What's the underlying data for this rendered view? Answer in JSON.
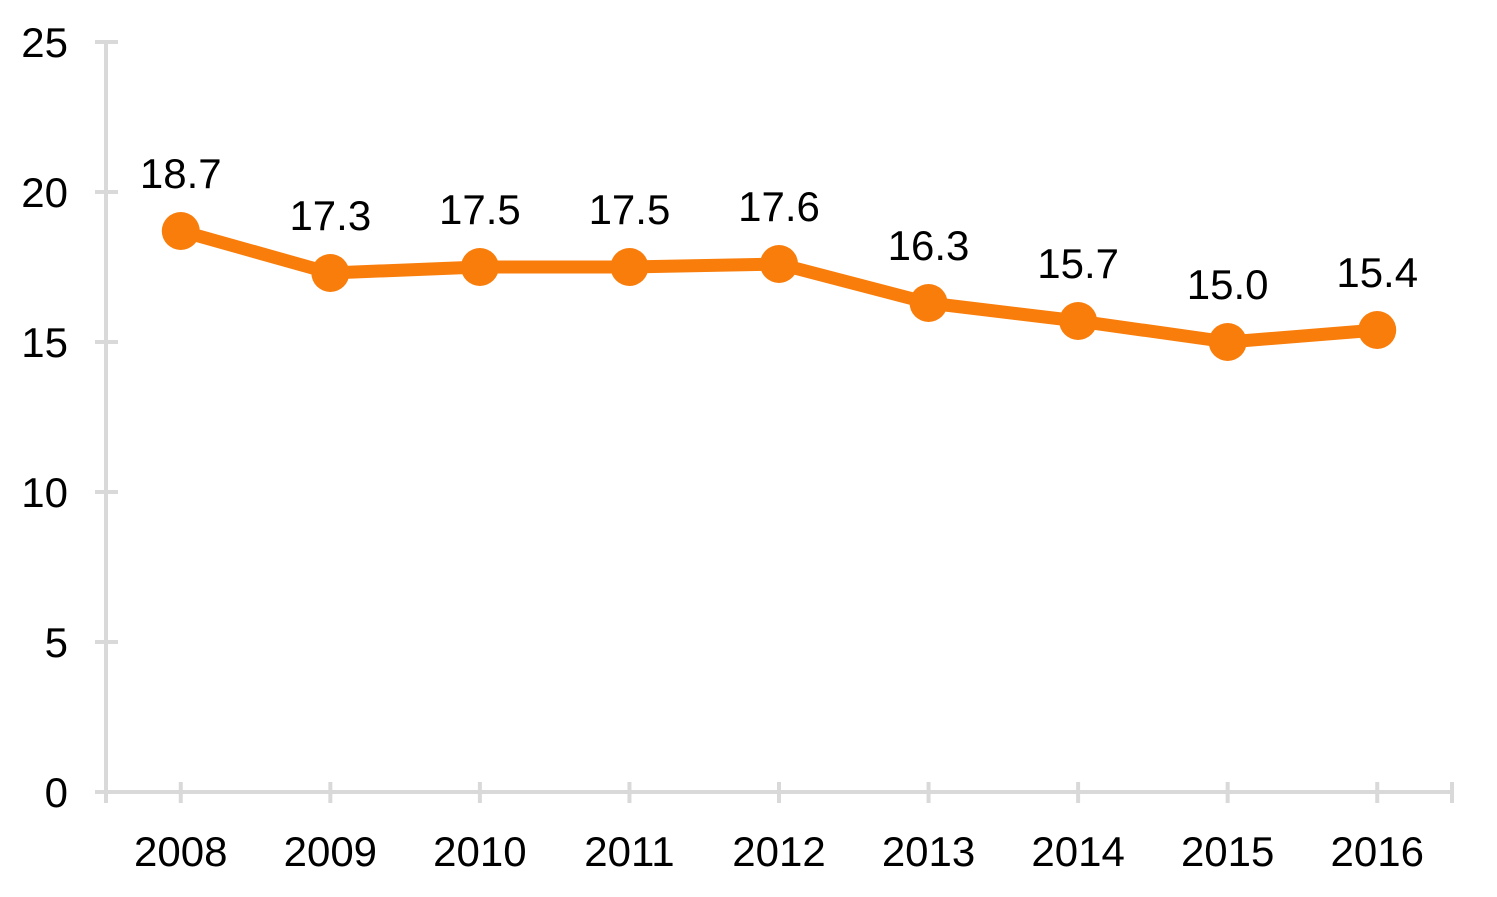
{
  "chart_data": {
    "type": "line",
    "title": "",
    "xlabel": "",
    "ylabel": "",
    "categories": [
      "2008",
      "2009",
      "2010",
      "2011",
      "2012",
      "2013",
      "2014",
      "2015",
      "2016"
    ],
    "values": [
      18.7,
      17.3,
      17.5,
      17.5,
      17.6,
      16.3,
      15.7,
      15.0,
      15.4
    ],
    "data_labels": [
      "18.7",
      "17.3",
      "17.5",
      "17.5",
      "17.6",
      "16.3",
      "15.7",
      "15.0",
      "15.4"
    ],
    "ylim": [
      0,
      25
    ],
    "yticks": [
      0,
      5,
      10,
      15,
      20,
      25
    ],
    "ytick_labels": [
      "0",
      "5",
      "10",
      "15",
      "20",
      "25"
    ],
    "grid": false,
    "legend": null,
    "marker": "circle",
    "colors": {
      "series": "#F97D0B",
      "axis": "#D9D9D9",
      "text": "#000000",
      "background": "#FFFFFF"
    }
  }
}
